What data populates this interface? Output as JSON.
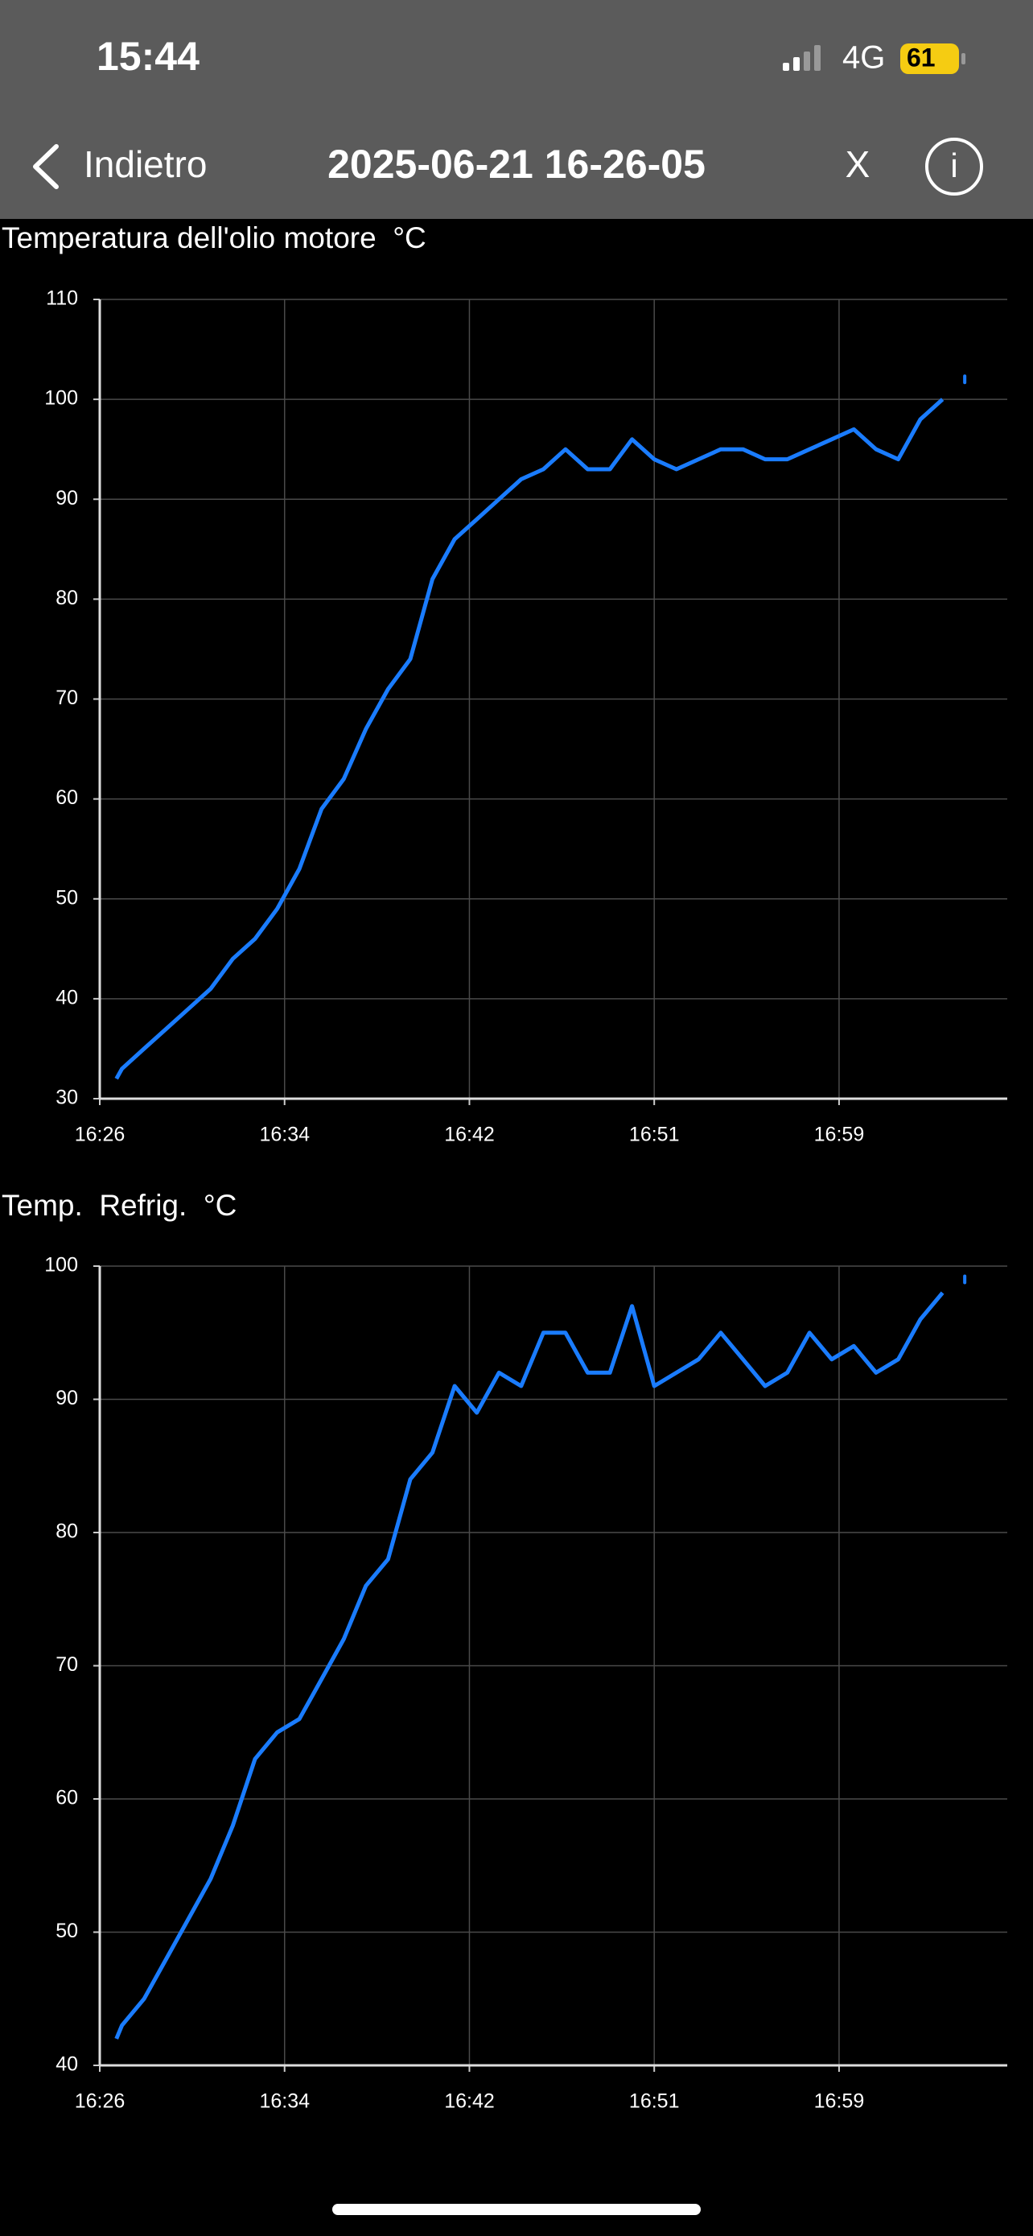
{
  "status_bar": {
    "time": "15:44",
    "network": "4G",
    "battery": "61"
  },
  "nav": {
    "back": "Indietro",
    "title": "2025-06-21 16-26-05",
    "close": "X",
    "info": "i"
  },
  "chart_data": [
    {
      "type": "line",
      "title": "Temperatura dell'olio motore  °C",
      "x": [
        "16:26:50",
        "16:27:05",
        "16:28:05",
        "16:29:05",
        "16:30:05",
        "16:31:05",
        "16:32:05",
        "16:33:05",
        "16:34:05",
        "16:35:05",
        "16:36:05",
        "16:37:05",
        "16:38:05",
        "16:39:05",
        "16:40:05",
        "16:41:05",
        "16:42:05",
        "16:43:05",
        "16:44:05",
        "16:45:05",
        "16:46:05",
        "16:47:05",
        "16:48:05",
        "16:49:05",
        "16:50:05",
        "16:51:05",
        "16:52:05",
        "16:53:05",
        "16:54:05",
        "16:55:05",
        "16:56:05",
        "16:57:05",
        "16:58:05",
        "16:59:05",
        "17:00:05",
        "17:01:05",
        "17:02:05",
        "17:03:05",
        "17:04:05",
        "17:04:35",
        "17:05:05"
      ],
      "series": [
        {
          "color": "#1a7cff",
          "values": [
            32,
            33,
            35,
            37,
            39,
            41,
            44,
            46,
            49,
            53,
            59,
            62,
            67,
            71,
            74,
            82,
            86,
            88,
            90,
            92,
            93,
            95,
            93,
            93,
            96,
            94,
            93,
            94,
            95,
            95,
            94,
            94,
            95,
            96,
            97,
            95,
            94,
            98,
            100,
            null,
            102
          ]
        }
      ],
      "xlim": [
        "16:26:05",
        "17:07:00"
      ],
      "xticks": [
        {
          "value": "16:26:05",
          "label": "16:26"
        },
        {
          "value": "16:34:25",
          "label": "16:34"
        },
        {
          "value": "16:42:45",
          "label": "16:42"
        },
        {
          "value": "16:51:05",
          "label": "16:51"
        },
        {
          "value": "16:59:25",
          "label": "16:59"
        }
      ],
      "ylim": [
        30,
        110
      ],
      "yticks": [
        30,
        40,
        50,
        60,
        70,
        80,
        90,
        100,
        110
      ],
      "grid": true
    },
    {
      "type": "line",
      "title": "Temp.  Refrig.  °C",
      "x": [
        "16:26:50",
        "16:27:05",
        "16:28:05",
        "16:29:05",
        "16:30:05",
        "16:31:05",
        "16:32:05",
        "16:33:05",
        "16:34:05",
        "16:35:05",
        "16:36:05",
        "16:37:05",
        "16:38:05",
        "16:39:05",
        "16:40:05",
        "16:41:05",
        "16:42:05",
        "16:43:05",
        "16:44:05",
        "16:45:05",
        "16:46:05",
        "16:47:05",
        "16:48:05",
        "16:49:05",
        "16:50:05",
        "16:51:05",
        "16:52:05",
        "16:53:05",
        "16:54:05",
        "16:55:05",
        "16:56:05",
        "16:57:05",
        "16:58:05",
        "16:59:05",
        "17:00:05",
        "17:01:05",
        "17:02:05",
        "17:03:05",
        "17:04:05",
        "17:04:35",
        "17:05:05"
      ],
      "series": [
        {
          "color": "#1a7cff",
          "values": [
            42,
            43,
            45,
            48,
            51,
            54,
            58,
            63,
            65,
            66,
            69,
            72,
            76,
            78,
            84,
            86,
            91,
            89,
            92,
            91,
            95,
            95,
            92,
            92,
            97,
            91,
            92,
            93,
            95,
            93,
            91,
            92,
            95,
            93,
            94,
            92,
            93,
            96,
            98,
            null,
            99
          ]
        }
      ],
      "xlim": [
        "16:26:05",
        "17:07:00"
      ],
      "xticks": [
        {
          "value": "16:26:05",
          "label": "16:26"
        },
        {
          "value": "16:34:25",
          "label": "16:34"
        },
        {
          "value": "16:42:45",
          "label": "16:42"
        },
        {
          "value": "16:51:05",
          "label": "16:51"
        },
        {
          "value": "16:59:25",
          "label": "16:59"
        }
      ],
      "ylim": [
        40,
        100
      ],
      "yticks": [
        40,
        50,
        60,
        70,
        80,
        90,
        100
      ],
      "grid": true
    }
  ]
}
